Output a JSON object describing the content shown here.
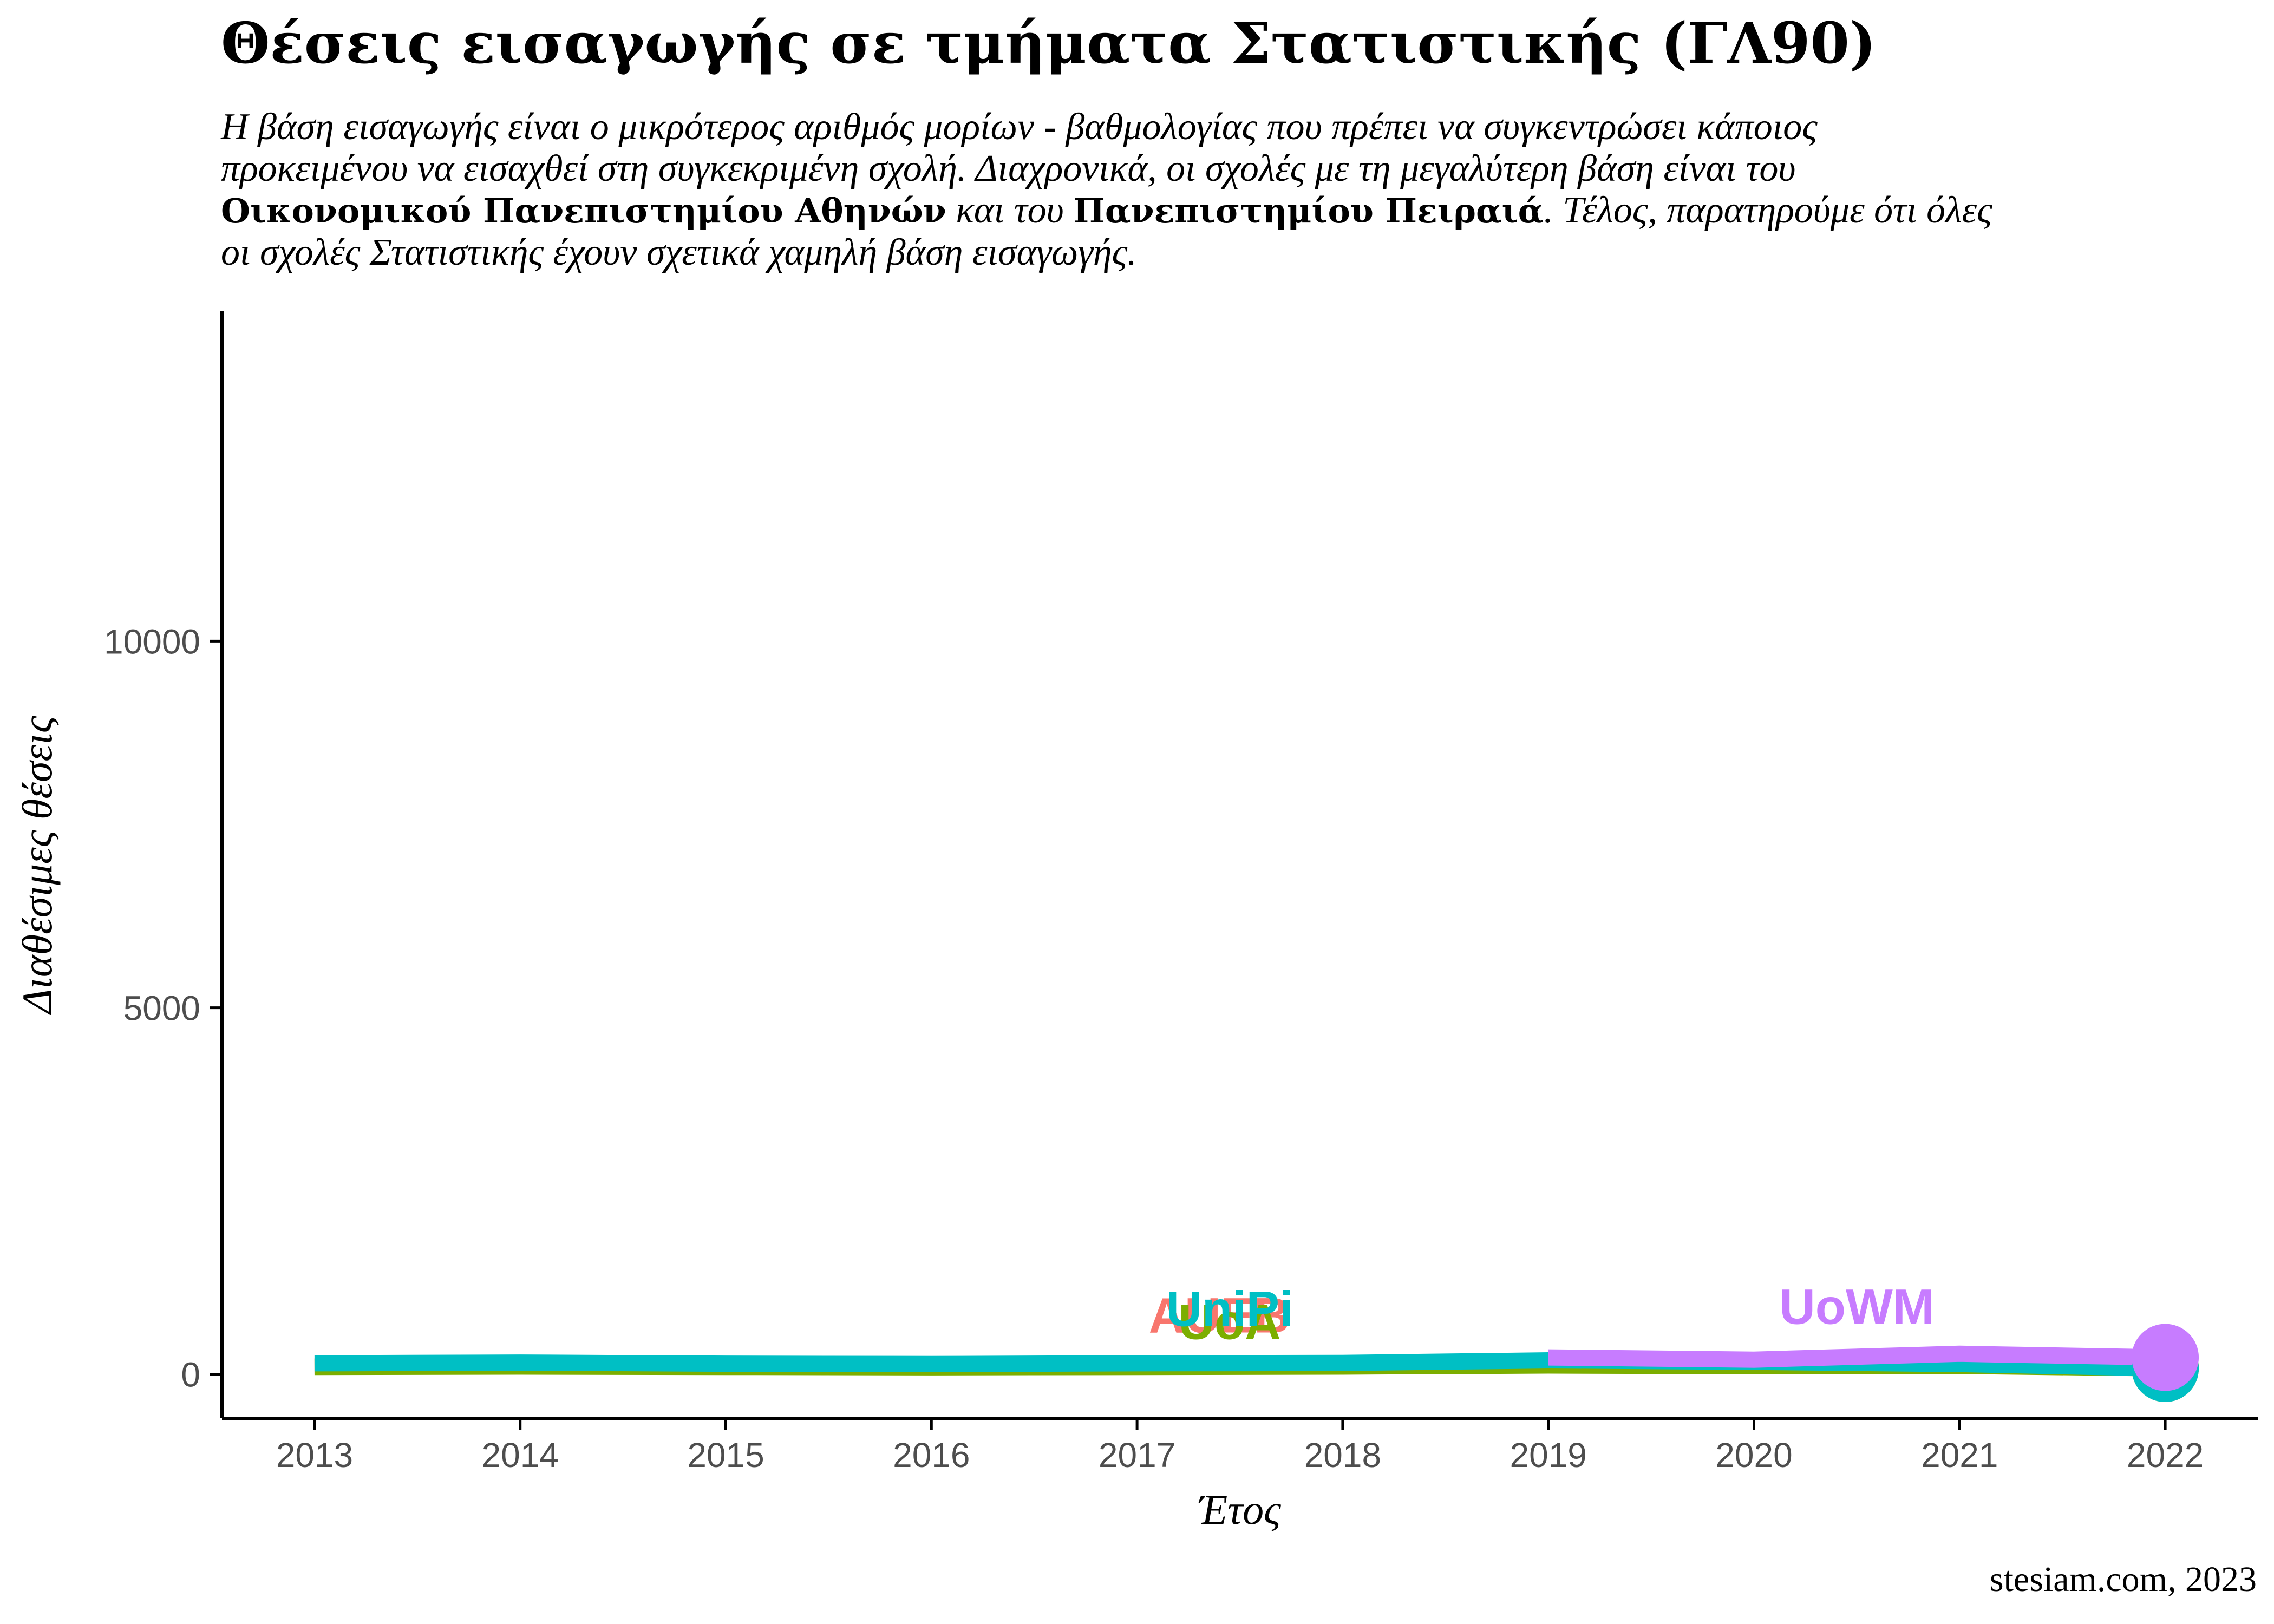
{
  "title": "Θέσεις εισαγωγής σε τμήματα Στατιστικής (ΓΛ90)",
  "subtitle": {
    "part1": "Η βάση εισαγωγής είναι ο μικρότερος αριθμός μορίων - βαθμολογίας που πρέπει να συγκεντρώσει κάποιος προκειμένου να εισαχθεί στη συγκεκριμένη σχολή. Διαχρονικά, οι σχολές με τη μεγαλύτερη βάση είναι του ",
    "bold1": "Οικονομικού Πανεπιστημίου Αθηνών",
    "part2": " και του ",
    "bold2": "Πανεπιστημίου Πειραιά",
    "part3": ". Τέλος, παρατηρούμε ότι όλες οι σχολές Στατιστικής έχουν σχετικά χαμηλή βάση εισαγωγής."
  },
  "caption": "stesiam.com, 2023",
  "colors": {
    "AUEB": "#F8766D",
    "UniPi": "#00BFC4",
    "UoA": "#7CAE00",
    "UoWM": "#C77CFF",
    "axis": "#000000",
    "tick_text": "#4D4D4D"
  },
  "chart_data": {
    "type": "line",
    "xlabel": "Έτος",
    "ylabel": "Διαθέσιμες θέσεις",
    "xlim": [
      2012.55,
      2022.45
    ],
    "ylim": [
      -600,
      14500
    ],
    "x_ticks": [
      2013,
      2014,
      2015,
      2016,
      2017,
      2018,
      2019,
      2020,
      2021,
      2022
    ],
    "y_ticks": [
      0,
      5000,
      10000
    ],
    "grid": false,
    "legend": "none",
    "series": [
      {
        "name": "AUEB",
        "color_key": "AUEB",
        "x": [
          2013,
          2014,
          2015,
          2016,
          2017,
          2018,
          2019,
          2020,
          2021,
          2022
        ],
        "y": [
          110,
          120,
          110,
          100,
          105,
          110,
          125,
          115,
          120,
          90
        ],
        "label_pos": [
          2017.4,
          570
        ]
      },
      {
        "name": "UoA",
        "color_key": "UoA",
        "x": [
          2013,
          2014,
          2015,
          2016,
          2017,
          2018,
          2019,
          2020,
          2021,
          2022
        ],
        "y": [
          100,
          105,
          100,
          95,
          100,
          105,
          120,
          110,
          115,
          80
        ],
        "label_pos": [
          2017.45,
          480
        ]
      },
      {
        "name": "UniPi",
        "color_key": "UniPi",
        "x": [
          2013,
          2014,
          2015,
          2016,
          2017,
          2018,
          2019,
          2020,
          2021,
          2022
        ],
        "y": [
          150,
          160,
          145,
          140,
          150,
          155,
          190,
          170,
          140,
          80
        ],
        "label_pos": [
          2017.45,
          660
        ]
      },
      {
        "name": "UoWM",
        "color_key": "UoWM",
        "x": [
          2019,
          2020,
          2021,
          2022
        ],
        "y": [
          230,
          200,
          280,
          230
        ],
        "label_pos": [
          2020.5,
          690
        ]
      }
    ]
  }
}
